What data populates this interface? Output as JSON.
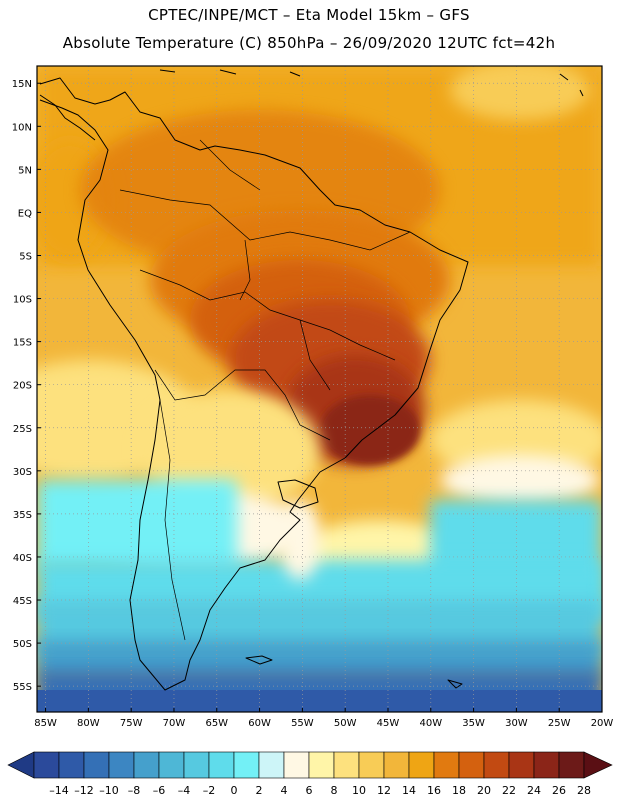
{
  "header": {
    "line1": "CPTEC/INPE/MCT –  Eta Model 15km – GFS",
    "line2": "Absolute Temperature (C) 850hPa – 26/09/2020 12UTC fct=42h"
  },
  "map": {
    "lat_labels": [
      "15N",
      "10N",
      "5N",
      "EQ",
      "5S",
      "10S",
      "15S",
      "20S",
      "25S",
      "30S",
      "35S",
      "40S",
      "45S",
      "50S",
      "55S"
    ],
    "lon_labels": [
      "85W",
      "80W",
      "75W",
      "70W",
      "65W",
      "60W",
      "55W",
      "50W",
      "45W",
      "40W",
      "35W",
      "30W",
      "25W",
      "20W"
    ],
    "lat_range": [
      17,
      -58
    ],
    "lon_range": [
      -86,
      -20
    ]
  },
  "colorbar": {
    "labels": [
      "-14",
      "-12",
      "-10",
      "-8",
      "-6",
      "-4",
      "-2",
      "0",
      "2",
      "4",
      "6",
      "8",
      "10",
      "12",
      "14",
      "16",
      "18",
      "20",
      "22",
      "24",
      "26",
      "28"
    ],
    "colors": [
      "#2b4a9b",
      "#2f5aa8",
      "#3470b6",
      "#3c86c2",
      "#45a0cc",
      "#4eb7d6",
      "#56c9e0",
      "#5fdceb",
      "#73f0f6",
      "#cdf5f8",
      "#fff8e4",
      "#fff5a8",
      "#fde17e",
      "#f8cc56",
      "#f2b63a",
      "#efa514",
      "#e17a10",
      "#d4610f",
      "#c24a12",
      "#a93515",
      "#8b2518",
      "#6c1a18"
    ],
    "low_arrow_color": "#1f3a85",
    "high_arrow_color": "#5a0f14"
  }
}
